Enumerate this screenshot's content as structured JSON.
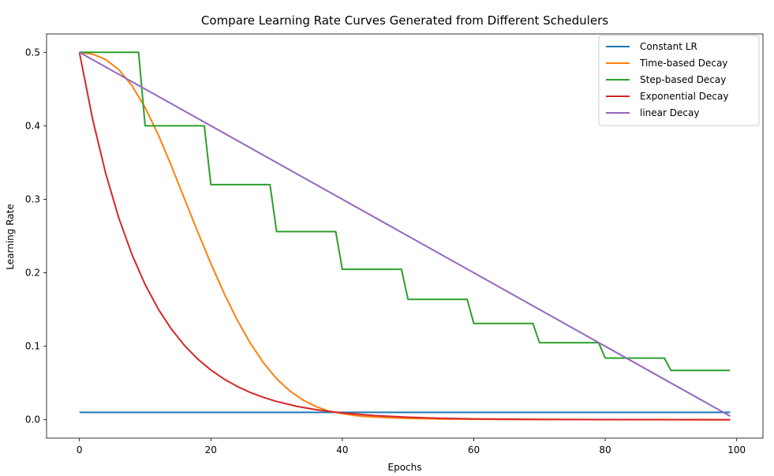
{
  "chart_data": {
    "type": "line",
    "title": "Compare Learning Rate Curves Generated from Different Schedulers",
    "xlabel": "Epochs",
    "ylabel": "Learning Rate",
    "xlim": [
      -5,
      104
    ],
    "ylim": [
      -0.025,
      0.525
    ],
    "xticks": [
      0,
      20,
      40,
      60,
      80,
      100
    ],
    "yticks": [
      0.0,
      0.1,
      0.2,
      0.3,
      0.4,
      0.5
    ],
    "xtick_labels": [
      "0",
      "20",
      "40",
      "60",
      "80",
      "100"
    ],
    "ytick_labels": [
      "0.0",
      "0.1",
      "0.2",
      "0.3",
      "0.4",
      "0.5"
    ],
    "grid": false,
    "legend_position": "top-right",
    "series": [
      {
        "name": "Constant LR",
        "color": "#1f77b4",
        "x": [
          0,
          99
        ],
        "y": [
          0.01,
          0.01
        ]
      },
      {
        "name": "Time-based Decay",
        "color": "#ff7f0e",
        "x": [
          0,
          2,
          4,
          6,
          8,
          10,
          12,
          14,
          16,
          18,
          20,
          22,
          24,
          26,
          28,
          30,
          32,
          34,
          36,
          38,
          40,
          42,
          44,
          46,
          48,
          50,
          55,
          60,
          65,
          70,
          75,
          80,
          85,
          90,
          95,
          99
        ],
        "y": [
          0.5,
          0.4975,
          0.4902,
          0.4764,
          0.4546,
          0.4248,
          0.3878,
          0.3453,
          0.3003,
          0.2557,
          0.2126,
          0.1723,
          0.1358,
          0.1043,
          0.0776,
          0.0558,
          0.0393,
          0.0269,
          0.0179,
          0.0115,
          0.0084,
          0.0056,
          0.0042,
          0.0032,
          0.0024,
          0.0018,
          0.001,
          0.0006,
          0.0004,
          0.0003,
          0.0002,
          0.0001,
          0.0001,
          0.0001,
          0.0,
          0.0
        ]
      },
      {
        "name": "Step-based Decay",
        "color": "#2ca02c",
        "x": [
          0,
          9,
          10,
          19,
          20,
          29,
          30,
          39,
          40,
          49,
          50,
          59,
          60,
          69,
          70,
          79,
          80,
          89,
          90,
          99
        ],
        "y": [
          0.5,
          0.5,
          0.4,
          0.4,
          0.32,
          0.32,
          0.256,
          0.256,
          0.2048,
          0.2048,
          0.1638,
          0.1638,
          0.131,
          0.131,
          0.1049,
          0.1049,
          0.0839,
          0.0839,
          0.0671,
          0.0671
        ]
      },
      {
        "name": "Exponential Decay",
        "color": "#d62728",
        "x": [
          0,
          2,
          4,
          6,
          8,
          10,
          12,
          14,
          16,
          18,
          20,
          22,
          24,
          26,
          28,
          30,
          33,
          36,
          40,
          45,
          50,
          55,
          60,
          70,
          80,
          90,
          99
        ],
        "y": [
          0.5,
          0.4094,
          0.3352,
          0.2744,
          0.2247,
          0.1839,
          0.1506,
          0.1233,
          0.1009,
          0.0826,
          0.0677,
          0.0554,
          0.0454,
          0.0371,
          0.0304,
          0.0249,
          0.0184,
          0.0137,
          0.0092,
          0.0056,
          0.0034,
          0.002,
          0.0012,
          0.0005,
          0.0002,
          0.0001,
          0.0
        ]
      },
      {
        "name": "linear Decay",
        "color": "#9467bd",
        "x": [
          0,
          99
        ],
        "y": [
          0.5,
          0.005
        ]
      }
    ]
  }
}
